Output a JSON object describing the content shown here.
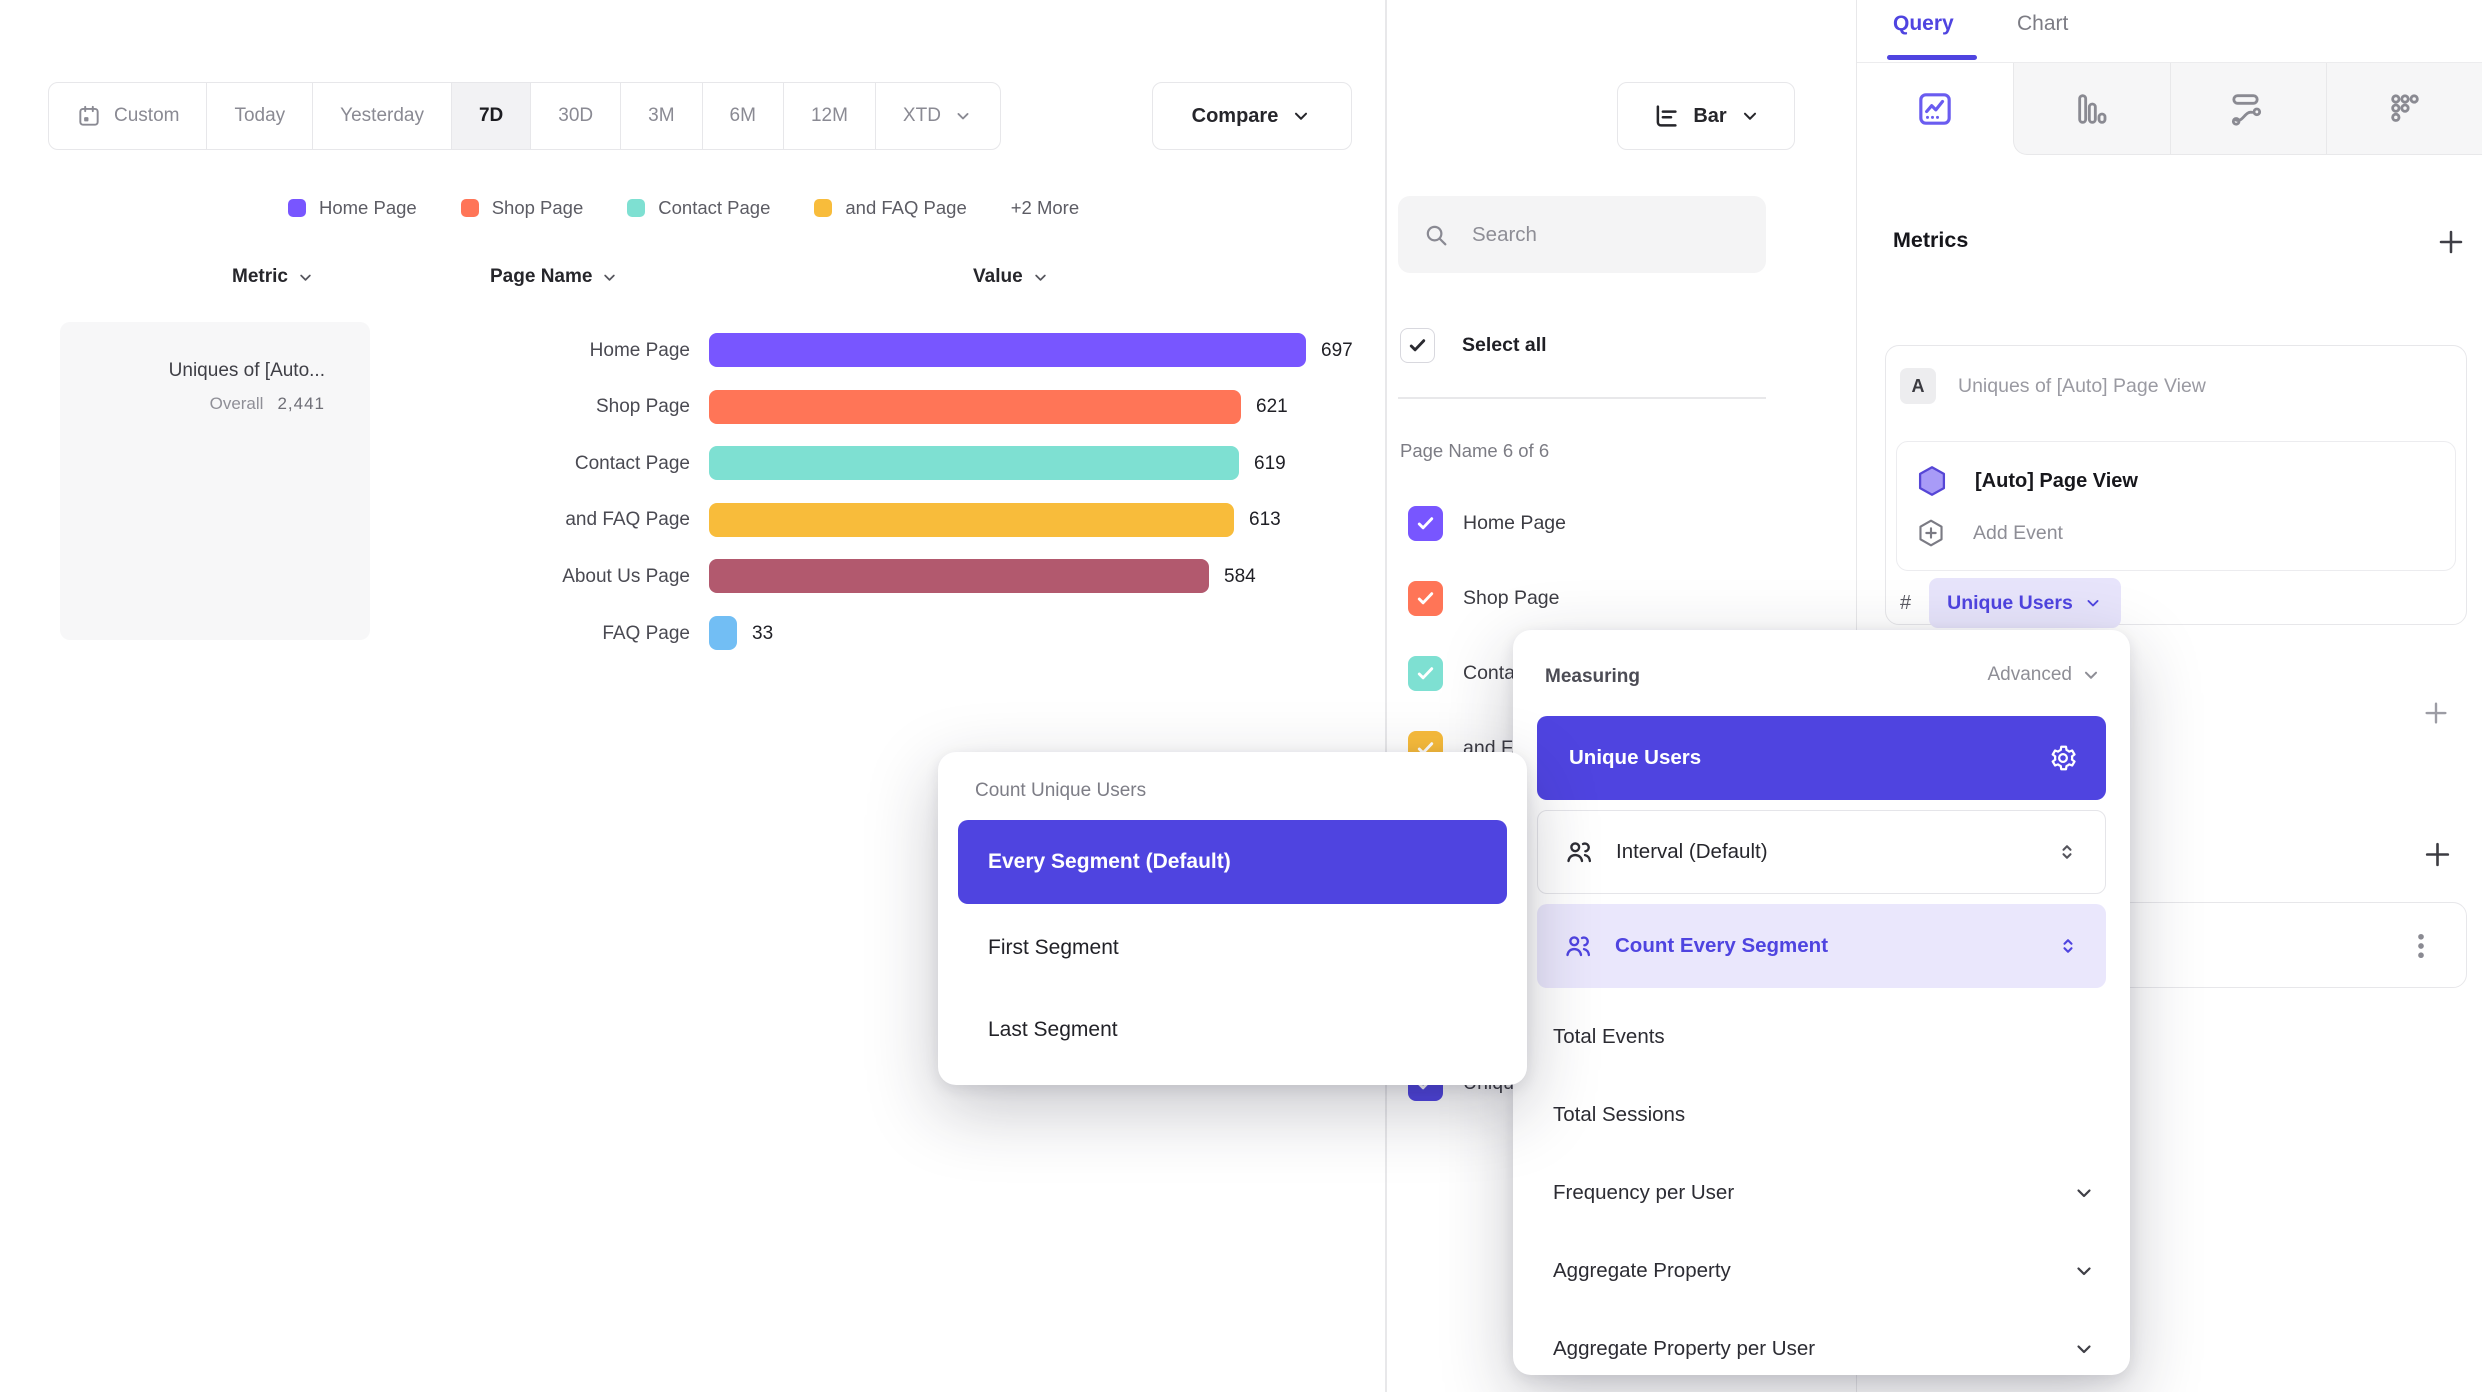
{
  "toolbar": {
    "date_ranges": [
      {
        "label": "Custom",
        "icon": "calendar"
      },
      {
        "label": "Today"
      },
      {
        "label": "Yesterday"
      },
      {
        "label": "7D"
      },
      {
        "label": "30D"
      },
      {
        "label": "3M"
      },
      {
        "label": "6M"
      },
      {
        "label": "12M"
      },
      {
        "label": "XTD",
        "chevron": true
      }
    ],
    "active_range": "7D",
    "compare_label": "Compare",
    "chart_type_label": "Bar"
  },
  "legend": {
    "items": [
      {
        "label": "Home Page",
        "color": "#7856FF"
      },
      {
        "label": "Shop Page",
        "color": "#FF7557"
      },
      {
        "label": "Contact Page",
        "color": "#7EE0D2"
      },
      {
        "label": "and FAQ Page",
        "color": "#F8BC3B"
      }
    ],
    "more_label": "+2 More"
  },
  "table": {
    "metric_header": "Metric",
    "page_name_header": "Page Name",
    "value_header": "Value"
  },
  "metric_summary": {
    "title": "Uniques of [Auto...",
    "overall_label": "Overall",
    "overall_value": "2,441"
  },
  "chart_data": {
    "type": "bar",
    "orientation": "horizontal",
    "categories": [
      "Home Page",
      "Shop Page",
      "Contact Page",
      "and FAQ Page",
      "About Us Page",
      "FAQ Page"
    ],
    "values": [
      697,
      621,
      619,
      613,
      584,
      33
    ],
    "colors": [
      "#7856FF",
      "#FF7557",
      "#7EE0D2",
      "#F8BC3B",
      "#B2596E",
      "#72BEF4"
    ],
    "series_name": "Uniques of [Auto] Page View",
    "overall_total": 2441,
    "xlim": [
      0,
      720
    ],
    "grid": false,
    "legend_position": "top"
  },
  "filter_panel": {
    "search_placeholder": "Search",
    "select_all_label": "Select all",
    "group_label": "Page Name 6 of 6",
    "items": [
      {
        "label": "Home Page",
        "color": "#7856FF",
        "checked": true
      },
      {
        "label": "Shop Page",
        "color": "#FF7557",
        "checked": true
      },
      {
        "label": "Contact Page",
        "color": "#7EE0D2",
        "checked": true
      },
      {
        "label": "and FAQ Page",
        "color": "#F8BC3B",
        "checked": true
      },
      {
        "label": "About Us Page",
        "color": "#B2596E",
        "checked": true
      },
      {
        "label": "FAQ Page",
        "color": "#72BEF4",
        "checked": true
      }
    ],
    "metric_item": {
      "label": "Uniques of [Auto] Page View",
      "color": "#4F44E0",
      "checked": true
    }
  },
  "query_panel": {
    "tabs": [
      {
        "label": "Query",
        "active": true
      },
      {
        "label": "Chart",
        "active": false
      }
    ],
    "chart_type_tabs": [
      {
        "icon": "insights",
        "active": true
      },
      {
        "icon": "funnel",
        "active": false
      },
      {
        "icon": "flows",
        "active": false
      },
      {
        "icon": "retention",
        "active": false
      }
    ],
    "metrics_heading": "Metrics",
    "metric_card": {
      "badge": "A",
      "title": "Uniques of [Auto] Page View",
      "event_name": "[Auto] Page View",
      "add_event_label": "Add Event",
      "aggregation_prefix": "#",
      "aggregation_label": "Unique Users"
    }
  },
  "measuring_menu": {
    "title": "Measuring",
    "advanced_label": "Advanced",
    "selected_option": "Unique Users",
    "interval_label": "Interval (Default)",
    "segment_label": "Count Every Segment",
    "options": [
      {
        "label": "Total Events",
        "expandable": false
      },
      {
        "label": "Total Sessions",
        "expandable": false
      },
      {
        "label": "Frequency per User",
        "expandable": true
      },
      {
        "label": "Aggregate Property",
        "expandable": true
      },
      {
        "label": "Aggregate Property per User",
        "expandable": true
      }
    ]
  },
  "segment_menu": {
    "title": "Count Unique Users",
    "selected_option": "Every Segment (Default)",
    "options": [
      "First Segment",
      "Last Segment"
    ]
  },
  "colors": {
    "accent": "#4F44E0",
    "accent_light": "#E7E4FB",
    "brand_purple": "#7856FF",
    "border": "#E8E8EA",
    "muted_text": "#8A8A93"
  }
}
